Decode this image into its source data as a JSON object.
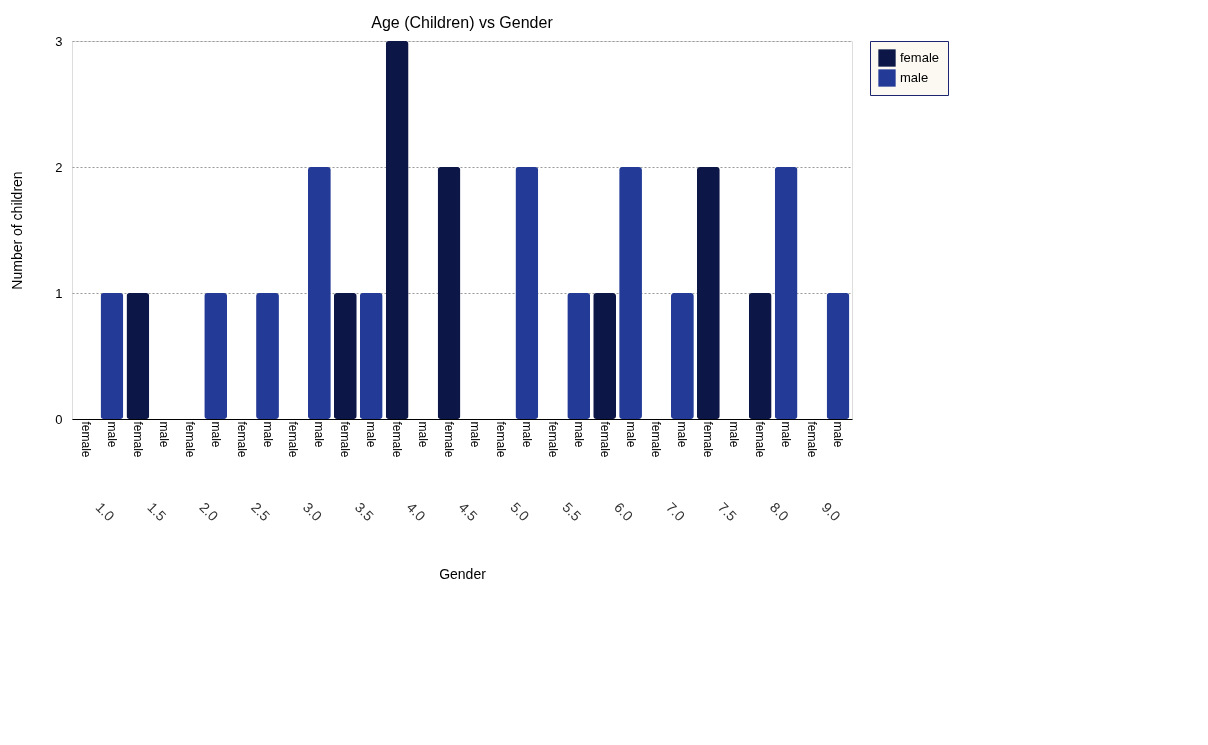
{
  "chart_data": {
    "type": "bar",
    "title": "Age (Children) vs Gender",
    "xlabel": "Gender",
    "ylabel": "Number of children",
    "categories": [
      "1.0",
      "1.5",
      "2.0",
      "2.5",
      "3.0",
      "3.5",
      "4.0",
      "4.5",
      "5.0",
      "5.5",
      "6.0",
      "7.0",
      "7.5",
      "8.0",
      "9.0"
    ],
    "series": [
      {
        "name": "female",
        "color": "#0c1747",
        "values": [
          0,
          1,
          0,
          0,
          0,
          1,
          3,
          2,
          0,
          0,
          1,
          0,
          2,
          1,
          0
        ]
      },
      {
        "name": "male",
        "color": "#233a97",
        "values": [
          1,
          0,
          1,
          1,
          2,
          1,
          0,
          0,
          2,
          1,
          2,
          1,
          0,
          2,
          1
        ]
      }
    ],
    "ylim": [
      0,
      3
    ],
    "yticks": [
      0,
      1,
      2,
      3
    ],
    "grid": "y",
    "legend": "top right"
  }
}
